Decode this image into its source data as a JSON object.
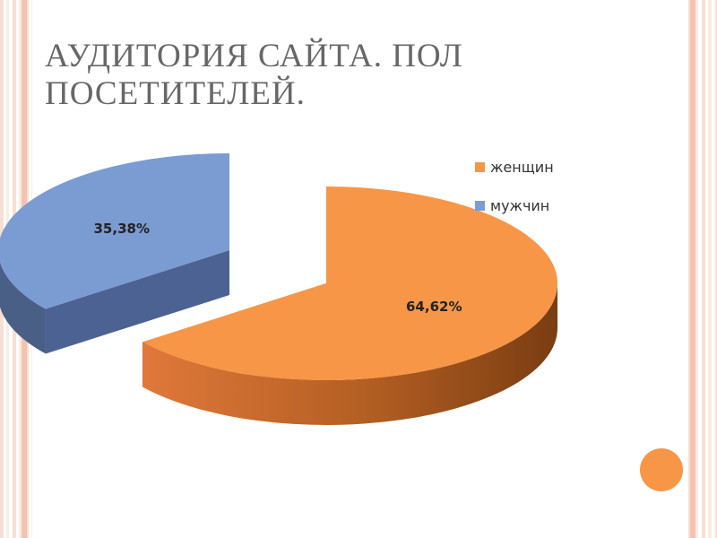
{
  "slide": {
    "title": "АУДИТОРИЯ САЙТА. ПОЛ ПОСЕТИТЕЛЕЙ."
  },
  "colors": {
    "accent_orange": "#f79646",
    "series_blue": "#7b9bd3",
    "border_peach": "#f2b9a0"
  },
  "chart_data": {
    "type": "pie",
    "style": "3d-exploded",
    "title": "",
    "legend_position": "right",
    "slices": [
      {
        "name": "женщин",
        "value": 64.62,
        "label": "64,62%",
        "color": "#f79646"
      },
      {
        "name": "мужчин",
        "value": 35.38,
        "label": "35,38%",
        "color": "#7b9bd3"
      }
    ]
  }
}
